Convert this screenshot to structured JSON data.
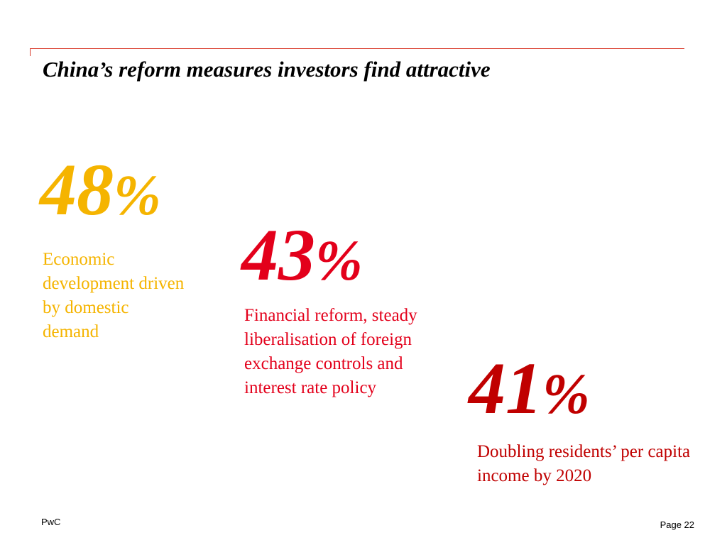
{
  "slide": {
    "title": "China’s reform measures investors find attractive"
  },
  "stats": [
    {
      "number": "48",
      "percent": "%",
      "description": "Economic development driven by domestic demand",
      "color": "#f5b400"
    },
    {
      "number": "43",
      "percent": "%",
      "description": "Financial reform, steady liberalisation of foreign exchange controls and interest rate policy",
      "color": "#e3001b"
    },
    {
      "number": "41",
      "percent": "%",
      "description": "Doubling residents’ per capita income by 2020",
      "color": "#c00000"
    }
  ],
  "footer": {
    "brand": "PwC",
    "page": "Page 22"
  },
  "colors": {
    "accent_rule": "#d93a2b"
  }
}
